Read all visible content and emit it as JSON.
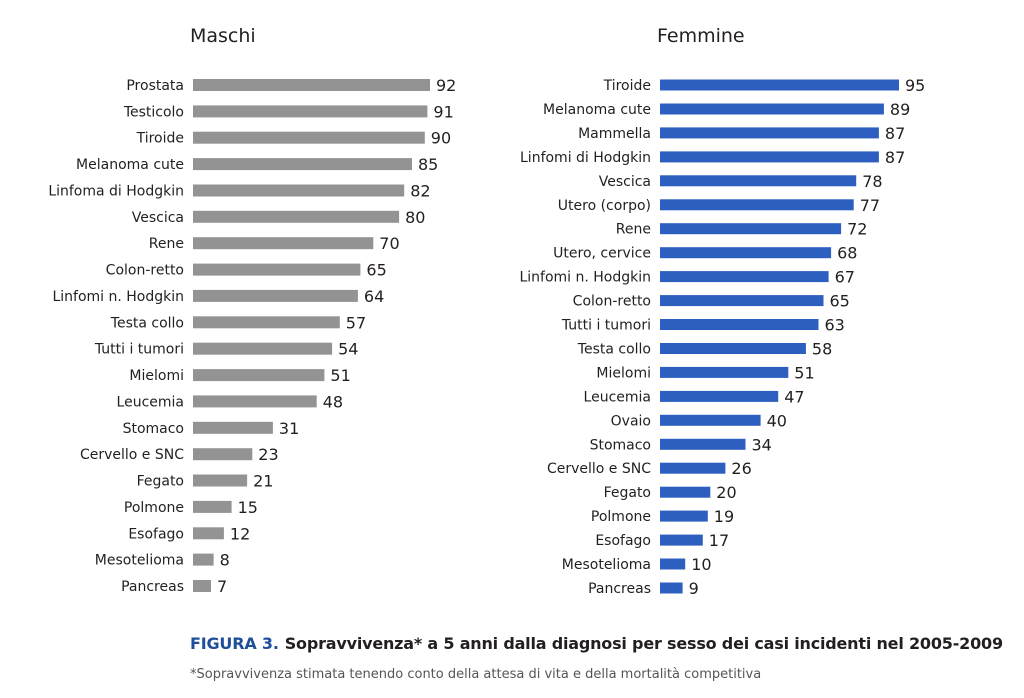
{
  "figure": {
    "label": "FIGURA 3.",
    "title": "Sopravvivenza* a 5 anni dalla diagnosi per sesso dei casi incidenti nel 2005-2009",
    "note": "*Sopravvivenza stimata tenendo conto della attesa di vita e della mortalità competitiva"
  },
  "chart_data": [
    {
      "type": "bar",
      "orientation": "horizontal",
      "title": "Maschi",
      "color": "#939393",
      "xlim": [
        0,
        100
      ],
      "categories": [
        "Prostata",
        "Testicolo",
        "Tiroide",
        "Melanoma cute",
        "Linfoma di Hodgkin",
        "Vescica",
        "Rene",
        "Colon-retto",
        "Linfomi n. Hodgkin",
        "Testa collo",
        "Tutti i tumori",
        "Mielomi",
        "Leucemia",
        "Stomaco",
        "Cervello e SNC",
        "Fegato",
        "Polmone",
        "Esofago",
        "Mesotelioma",
        "Pancreas"
      ],
      "values": [
        92,
        91,
        90,
        85,
        82,
        80,
        70,
        65,
        64,
        57,
        54,
        51,
        48,
        31,
        23,
        21,
        15,
        12,
        8,
        7
      ]
    },
    {
      "type": "bar",
      "orientation": "horizontal",
      "title": "Femmine",
      "color": "#2c5fbf",
      "xlim": [
        0,
        100
      ],
      "categories": [
        "Tiroide",
        "Melanoma cute",
        "Mammella",
        "Linfomi di Hodgkin",
        "Vescica",
        "Utero (corpo)",
        "Rene",
        "Utero, cervice",
        "Linfomi n. Hodgkin",
        "Colon-retto",
        "Tutti i tumori",
        "Testa collo",
        "Mielomi",
        "Leucemia",
        "Ovaio",
        "Stomaco",
        "Cervello e SNC",
        "Fegato",
        "Polmone",
        "Esofago",
        "Mesotelioma",
        "Pancreas"
      ],
      "values": [
        95,
        89,
        87,
        87,
        78,
        77,
        72,
        68,
        67,
        65,
        63,
        58,
        51,
        47,
        40,
        34,
        26,
        20,
        19,
        17,
        10,
        9
      ]
    }
  ]
}
